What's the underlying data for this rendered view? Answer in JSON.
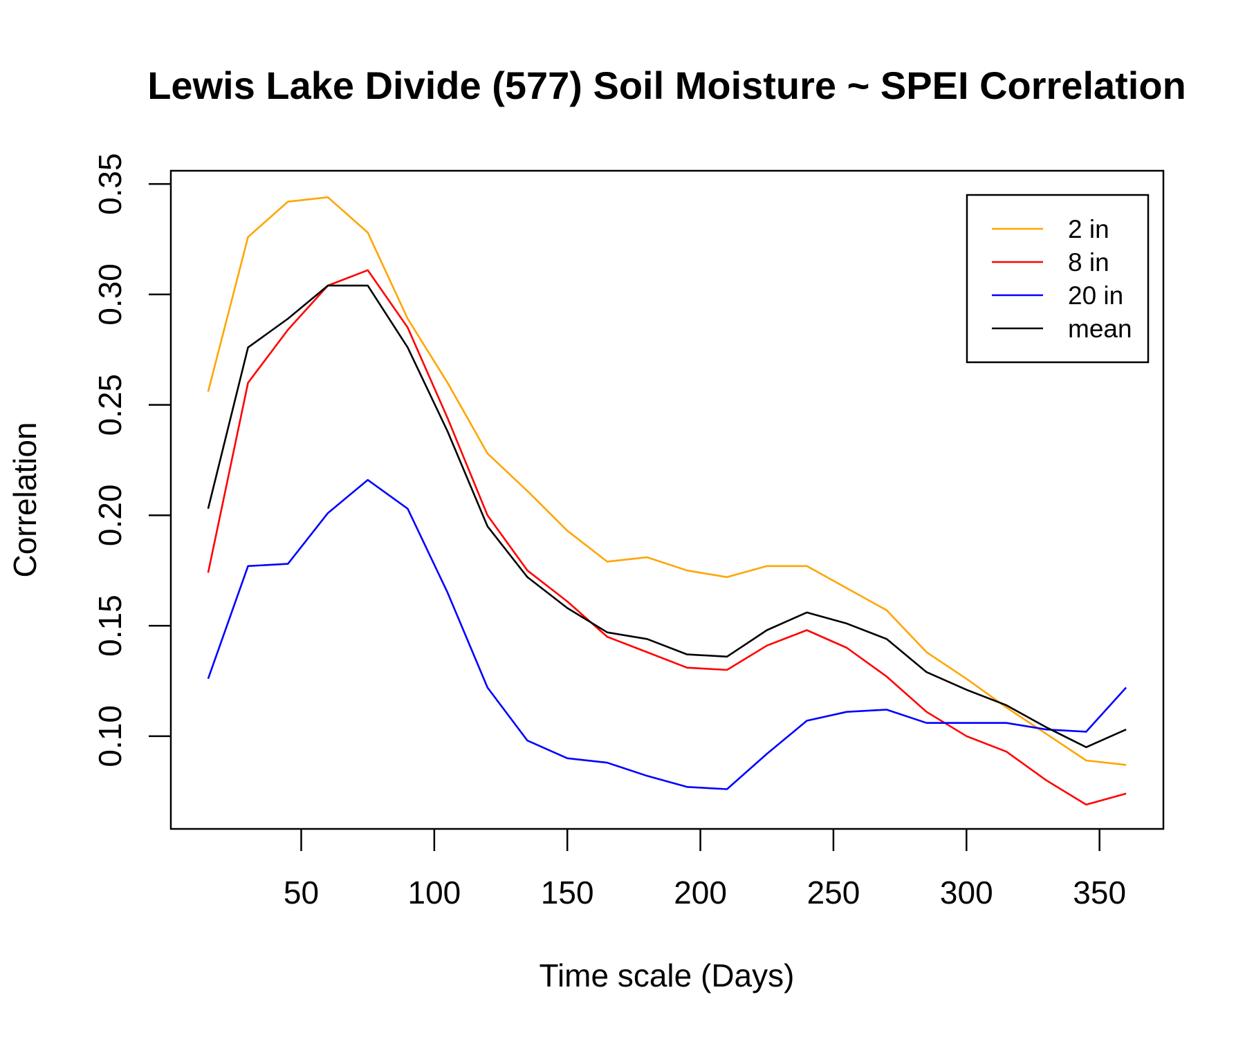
{
  "chart_data": {
    "type": "line",
    "title": "Lewis Lake Divide (577) Soil Moisture ~ SPEI Correlation",
    "xlabel": "Time scale (Days)",
    "ylabel": "Correlation",
    "x": [
      15,
      30,
      45,
      60,
      75,
      90,
      105,
      120,
      135,
      150,
      165,
      180,
      195,
      210,
      225,
      240,
      255,
      270,
      285,
      300,
      315,
      330,
      345,
      360
    ],
    "xlim": [
      1,
      374
    ],
    "ylim": [
      0.058,
      0.356
    ],
    "xticks": [
      50,
      100,
      150,
      200,
      250,
      300,
      350
    ],
    "yticks": [
      0.1,
      0.15,
      0.2,
      0.25,
      0.3,
      0.35
    ],
    "ytick_labels": [
      "0.10",
      "0.15",
      "0.20",
      "0.25",
      "0.30",
      "0.35"
    ],
    "legend_position": "top-right",
    "grid": false,
    "series": [
      {
        "name": "2 in",
        "color": "#FFA500",
        "values": [
          0.256,
          0.326,
          0.342,
          0.344,
          0.328,
          0.289,
          0.26,
          0.228,
          0.211,
          0.193,
          0.179,
          0.181,
          0.175,
          0.172,
          0.177,
          0.177,
          0.167,
          0.157,
          0.138,
          0.126,
          0.113,
          0.101,
          0.089,
          0.087
        ]
      },
      {
        "name": "8 in",
        "color": "#FF0000",
        "values": [
          0.174,
          0.26,
          0.284,
          0.304,
          0.311,
          0.285,
          0.244,
          0.2,
          0.175,
          0.161,
          0.145,
          0.138,
          0.131,
          0.13,
          0.141,
          0.148,
          0.14,
          0.127,
          0.111,
          0.1,
          0.093,
          0.08,
          0.069,
          0.074
        ]
      },
      {
        "name": "20 in",
        "color": "#0000FF",
        "values": [
          0.126,
          0.177,
          0.178,
          0.201,
          0.216,
          0.203,
          0.165,
          0.122,
          0.098,
          0.09,
          0.088,
          0.082,
          0.077,
          0.076,
          0.092,
          0.107,
          0.111,
          0.112,
          0.106,
          0.106,
          0.106,
          0.103,
          0.102,
          0.122
        ]
      },
      {
        "name": "mean",
        "color": "#000000",
        "values": [
          0.203,
          0.276,
          0.289,
          0.304,
          0.304,
          0.276,
          0.238,
          0.195,
          0.172,
          0.158,
          0.147,
          0.144,
          0.137,
          0.136,
          0.148,
          0.156,
          0.151,
          0.144,
          0.129,
          0.121,
          0.114,
          0.104,
          0.095,
          0.103
        ]
      }
    ]
  }
}
